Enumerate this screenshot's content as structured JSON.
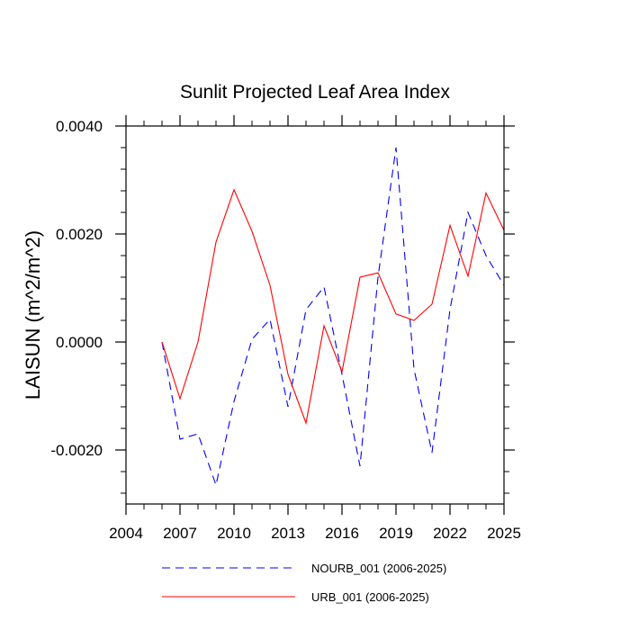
{
  "chart_data": {
    "type": "line",
    "title": "Sunlit Projected Leaf Area Index",
    "xlabel": "",
    "ylabel": "LAISUN  (m^2/m^2)",
    "xlim": [
      2004,
      2025
    ],
    "ylim": [
      -0.003,
      0.004
    ],
    "x_major_ticks": [
      2004,
      2007,
      2010,
      2013,
      2016,
      2019,
      2022,
      2025
    ],
    "x_tick_labels": [
      "2004",
      "2007",
      "2010",
      "2013",
      "2016",
      "2019",
      "2022",
      "2025"
    ],
    "y_major_ticks": [
      -0.002,
      0.0,
      0.002,
      0.004
    ],
    "y_tick_labels": [
      "-0.0020",
      "0.0000",
      "0.0020",
      "0.0040"
    ],
    "legend_position": "bottom",
    "x": [
      2006,
      2007,
      2008,
      2009,
      2010,
      2011,
      2012,
      2013,
      2014,
      2015,
      2016,
      2017,
      2018,
      2019,
      2020,
      2021,
      2022,
      2023,
      2024,
      2025
    ],
    "series": [
      {
        "name": "NOURB_001 (2006-2025)",
        "color": "#0000ff",
        "dash": "dashed",
        "values": [
          0.0,
          -0.0018,
          -0.0017,
          -0.00265,
          -0.0011,
          5e-05,
          0.00042,
          -0.0012,
          0.0006,
          0.00102,
          -0.0006,
          -0.0023,
          0.0012,
          0.0036,
          -0.0005,
          -0.00205,
          0.0006,
          0.0024,
          0.0016,
          0.00105
        ]
      },
      {
        "name": "URB_001 (2006-2025)",
        "color": "#ff0000",
        "dash": "solid",
        "values": [
          0.0,
          -0.00105,
          0.0,
          0.00185,
          0.00282,
          0.00205,
          0.00105,
          -0.0006,
          -0.0015,
          0.0003,
          -0.00055,
          0.0012,
          0.00128,
          0.00052,
          0.0004,
          0.0007,
          0.00216,
          0.00122,
          0.00276,
          0.00207
        ]
      }
    ]
  }
}
